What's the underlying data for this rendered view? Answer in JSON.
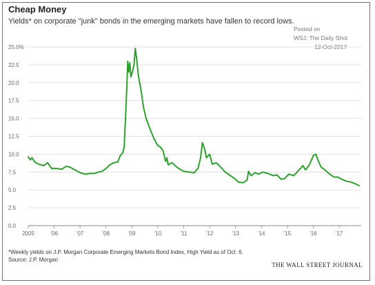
{
  "header": {
    "title": "Cheap Money",
    "subtitle": "Yields* on corporate \"junk\" bonds in the emerging markets have fallen to record lows.",
    "posted_line1": "Posted on",
    "posted_line2": "WSJ: The Daily Shot",
    "posted_line3": "12-Oct-2017"
  },
  "footer": {
    "note": "*Weekly yields on J.P. Morgan Corporate Emerging Markets Bond Index, High Yield as of Oct. 6.",
    "source": "Source: J.P. Morgan",
    "brand": "THE WALL STREET JOURNAL"
  },
  "colors": {
    "line": "#2ca02c",
    "grid": "#d9d9d9",
    "axis": "#888888"
  },
  "chart_data": {
    "type": "line",
    "title": "Cheap Money",
    "xlabel": "",
    "ylabel": "",
    "xlim": [
      2005.0,
      2017.85
    ],
    "ylim": [
      0,
      25
    ],
    "grid": "horizontal",
    "x_ticks": [
      {
        "value": 2005,
        "label": "2005"
      },
      {
        "value": 2006,
        "label": "'06"
      },
      {
        "value": 2007,
        "label": "'07"
      },
      {
        "value": 2008,
        "label": "'08"
      },
      {
        "value": 2009,
        "label": "'09"
      },
      {
        "value": 2010,
        "label": "'10"
      },
      {
        "value": 2011,
        "label": "'11"
      },
      {
        "value": 2012,
        "label": "'12"
      },
      {
        "value": 2013,
        "label": "'13"
      },
      {
        "value": 2014,
        "label": "'14"
      },
      {
        "value": 2015,
        "label": "'15"
      },
      {
        "value": 2016,
        "label": "'16"
      },
      {
        "value": 2017,
        "label": "'17"
      }
    ],
    "y_ticks": [
      {
        "value": 0,
        "label": "0.0"
      },
      {
        "value": 2.5,
        "label": "2.5"
      },
      {
        "value": 5,
        "label": "5.0"
      },
      {
        "value": 7.5,
        "label": "7.5"
      },
      {
        "value": 10,
        "label": "10.0"
      },
      {
        "value": 12.5,
        "label": "12.5"
      },
      {
        "value": 15,
        "label": "15.0"
      },
      {
        "value": 17.5,
        "label": "17.5"
      },
      {
        "value": 20,
        "label": "20.0"
      },
      {
        "value": 22.5,
        "label": "22.5"
      },
      {
        "value": 25,
        "label": "25.0%"
      }
    ],
    "series": [
      {
        "values": [
          [
            2005.0,
            9.6
          ],
          [
            2005.08,
            9.2
          ],
          [
            2005.15,
            9.5
          ],
          [
            2005.25,
            8.9
          ],
          [
            2005.4,
            8.6
          ],
          [
            2005.6,
            8.4
          ],
          [
            2005.75,
            8.8
          ],
          [
            2005.9,
            8.0
          ],
          [
            2006.1,
            8.0
          ],
          [
            2006.3,
            7.9
          ],
          [
            2006.45,
            8.3
          ],
          [
            2006.6,
            8.2
          ],
          [
            2006.8,
            7.8
          ],
          [
            2007.0,
            7.4
          ],
          [
            2007.2,
            7.2
          ],
          [
            2007.4,
            7.3
          ],
          [
            2007.55,
            7.3
          ],
          [
            2007.7,
            7.5
          ],
          [
            2007.85,
            7.6
          ],
          [
            2008.0,
            8.0
          ],
          [
            2008.15,
            8.5
          ],
          [
            2008.3,
            8.8
          ],
          [
            2008.45,
            8.9
          ],
          [
            2008.55,
            9.8
          ],
          [
            2008.65,
            10.2
          ],
          [
            2008.7,
            11.0
          ],
          [
            2008.76,
            15.5
          ],
          [
            2008.8,
            19.0
          ],
          [
            2008.84,
            23.0
          ],
          [
            2008.88,
            21.5
          ],
          [
            2008.92,
            22.8
          ],
          [
            2008.96,
            20.8
          ],
          [
            2009.02,
            21.5
          ],
          [
            2009.08,
            22.5
          ],
          [
            2009.13,
            24.8
          ],
          [
            2009.18,
            23.5
          ],
          [
            2009.25,
            21.0
          ],
          [
            2009.35,
            19.0
          ],
          [
            2009.45,
            16.5
          ],
          [
            2009.55,
            15.0
          ],
          [
            2009.7,
            13.5
          ],
          [
            2009.85,
            12.2
          ],
          [
            2010.0,
            11.2
          ],
          [
            2010.1,
            11.0
          ],
          [
            2010.2,
            10.5
          ],
          [
            2010.3,
            9.0
          ],
          [
            2010.35,
            9.5
          ],
          [
            2010.4,
            8.5
          ],
          [
            2010.55,
            8.8
          ],
          [
            2010.7,
            8.3
          ],
          [
            2010.85,
            7.9
          ],
          [
            2011.0,
            7.6
          ],
          [
            2011.2,
            7.5
          ],
          [
            2011.4,
            7.4
          ],
          [
            2011.55,
            8.0
          ],
          [
            2011.65,
            9.5
          ],
          [
            2011.72,
            11.6
          ],
          [
            2011.8,
            10.8
          ],
          [
            2011.88,
            9.5
          ],
          [
            2012.0,
            10.0
          ],
          [
            2012.1,
            8.6
          ],
          [
            2012.25,
            8.8
          ],
          [
            2012.4,
            8.3
          ],
          [
            2012.6,
            7.5
          ],
          [
            2012.8,
            7.0
          ],
          [
            2013.0,
            6.5
          ],
          [
            2013.1,
            6.1
          ],
          [
            2013.3,
            6.0
          ],
          [
            2013.45,
            6.4
          ],
          [
            2013.5,
            7.6
          ],
          [
            2013.6,
            7.0
          ],
          [
            2013.75,
            7.4
          ],
          [
            2013.9,
            7.2
          ],
          [
            2014.05,
            7.5
          ],
          [
            2014.25,
            7.3
          ],
          [
            2014.45,
            7.0
          ],
          [
            2014.6,
            7.1
          ],
          [
            2014.75,
            6.5
          ],
          [
            2014.9,
            6.6
          ],
          [
            2015.05,
            7.2
          ],
          [
            2015.25,
            7.0
          ],
          [
            2015.45,
            7.8
          ],
          [
            2015.6,
            8.4
          ],
          [
            2015.7,
            7.8
          ],
          [
            2015.85,
            8.5
          ],
          [
            2016.0,
            9.8
          ],
          [
            2016.1,
            10.0
          ],
          [
            2016.2,
            9.0
          ],
          [
            2016.3,
            8.2
          ],
          [
            2016.45,
            7.8
          ],
          [
            2016.6,
            7.3
          ],
          [
            2016.8,
            6.8
          ],
          [
            2016.95,
            6.8
          ],
          [
            2017.1,
            6.5
          ],
          [
            2017.3,
            6.2
          ],
          [
            2017.45,
            6.1
          ],
          [
            2017.6,
            5.9
          ],
          [
            2017.77,
            5.6
          ]
        ]
      }
    ]
  }
}
